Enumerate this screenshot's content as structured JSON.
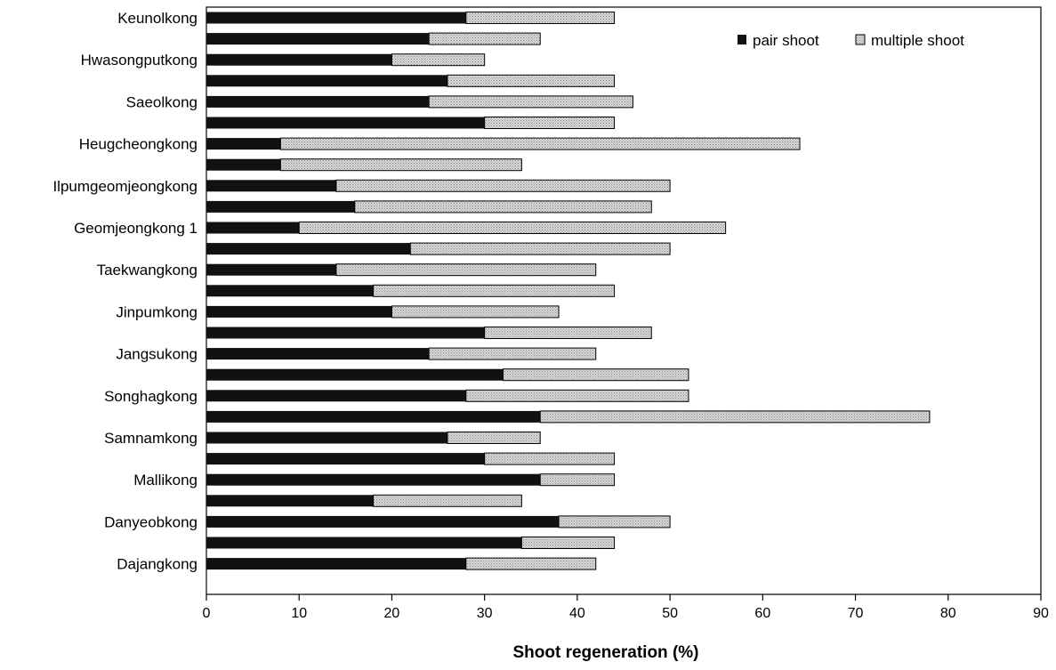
{
  "chart_data": {
    "type": "bar",
    "orientation": "horizontal",
    "stacked": true,
    "title": "",
    "xlabel": "Shoot regeneration (%)",
    "ylabel": "",
    "xlim": [
      0,
      90
    ],
    "xticks": [
      0,
      10,
      20,
      30,
      40,
      50,
      60,
      70,
      80,
      90
    ],
    "grid": false,
    "legend_position": "top-right",
    "categories": [
      "Keunolkong",
      "",
      "Hwasongputkong",
      "",
      "Saeolkong",
      "",
      "Heugcheongkong",
      "",
      "Ilpumgeomjeongkong",
      "",
      "Geomjeongkong 1",
      "",
      "Taekwangkong",
      "",
      "Jinpumkong",
      "",
      "Jangsukong",
      "",
      "Songhagkong",
      "",
      "Samnamkong",
      "",
      "Mallikong",
      "",
      "Danyeobkong",
      "",
      "Dajangkong"
    ],
    "series": [
      {
        "name": "pair shoot",
        "color": "#111111",
        "values": [
          28,
          24,
          20,
          26,
          24,
          30,
          8,
          8,
          14,
          16,
          10,
          22,
          14,
          18,
          20,
          30,
          24,
          32,
          28,
          36,
          26,
          30,
          36,
          18,
          38,
          34,
          28
        ]
      },
      {
        "name": "multiple shoot",
        "color": "#cfcfcf",
        "values": [
          16,
          12,
          10,
          18,
          22,
          14,
          56,
          26,
          36,
          32,
          46,
          28,
          28,
          26,
          18,
          18,
          18,
          20,
          24,
          42,
          10,
          14,
          8,
          16,
          12,
          10,
          14
        ]
      }
    ]
  }
}
